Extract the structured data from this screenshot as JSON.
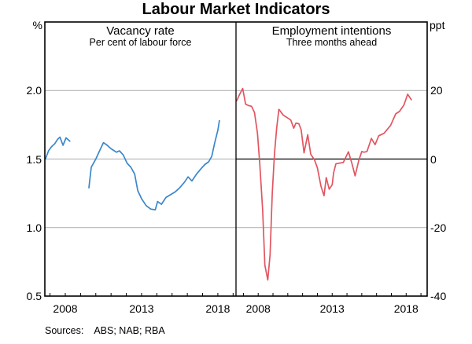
{
  "title": "Labour Market Indicators",
  "footer": {
    "sources_label": "Sources:",
    "sources_text": "ABS; NAB; RBA"
  },
  "colors": {
    "vacancy_line": "#3a87cb",
    "intentions_line": "#e25560",
    "gridline": "#ababab",
    "frame": "#000000"
  },
  "chart_data": [
    {
      "type": "line",
      "panel": "left",
      "title": "Vacancy rate",
      "subtitle": "Per cent of labour force",
      "ylabel": "%",
      "xlim": [
        2006.66,
        2019.19
      ],
      "ylim": [
        0.5,
        2.5
      ],
      "ytick_values": [
        2.0,
        1.5,
        1.0,
        0.5
      ],
      "ytick_labels": [
        "2.0",
        "1.5",
        "1.0",
        "0.5"
      ],
      "xtick_values": [
        2008,
        2013,
        2018
      ],
      "xtick_labels": [
        "2008",
        "2013",
        "2018"
      ],
      "minor_xtick_step": 1,
      "grid": "horizontal",
      "zero_line": false,
      "legend": "none",
      "series": [
        {
          "name": "Vacancy rate (per cent of labour force)",
          "color_key": "vacancy_line",
          "segments": [
            [
              [
                2006.7,
                1.5
              ],
              [
                2006.9,
                1.56
              ],
              [
                2007.1,
                1.59
              ],
              [
                2007.3,
                1.61
              ],
              [
                2007.5,
                1.645
              ],
              [
                2007.65,
                1.66
              ],
              [
                2007.85,
                1.6
              ],
              [
                2008.05,
                1.655
              ],
              [
                2008.3,
                1.63
              ]
            ],
            [
              [
                2009.55,
                1.29
              ],
              [
                2009.7,
                1.44
              ],
              [
                2009.85,
                1.47
              ],
              [
                2010.0,
                1.5
              ],
              [
                2010.25,
                1.56
              ],
              [
                2010.5,
                1.62
              ],
              [
                2010.75,
                1.6
              ],
              [
                2011.0,
                1.575
              ],
              [
                2011.35,
                1.55
              ],
              [
                2011.55,
                1.56
              ],
              [
                2011.8,
                1.53
              ],
              [
                2012.05,
                1.47
              ],
              [
                2012.3,
                1.44
              ],
              [
                2012.55,
                1.39
              ],
              [
                2012.75,
                1.27
              ],
              [
                2013.0,
                1.21
              ],
              [
                2013.3,
                1.16
              ],
              [
                2013.6,
                1.135
              ],
              [
                2013.9,
                1.13
              ],
              [
                2014.05,
                1.19
              ],
              [
                2014.3,
                1.17
              ],
              [
                2014.6,
                1.22
              ],
              [
                2014.9,
                1.24
              ],
              [
                2015.2,
                1.26
              ],
              [
                2015.5,
                1.29
              ],
              [
                2015.8,
                1.33
              ],
              [
                2016.05,
                1.37
              ],
              [
                2016.3,
                1.34
              ],
              [
                2016.6,
                1.39
              ],
              [
                2016.9,
                1.43
              ],
              [
                2017.15,
                1.46
              ],
              [
                2017.4,
                1.48
              ],
              [
                2017.6,
                1.52
              ],
              [
                2017.8,
                1.62
              ],
              [
                2018.0,
                1.71
              ],
              [
                2018.1,
                1.78
              ]
            ]
          ]
        }
      ]
    },
    {
      "type": "line",
      "panel": "right",
      "title": "Employment intentions",
      "subtitle": "Three months ahead",
      "ylabel": "ppt",
      "xlim": [
        2006.5,
        2019.42
      ],
      "ylim": [
        -40,
        40
      ],
      "ytick_values": [
        20,
        0,
        -20,
        -40
      ],
      "ytick_labels": [
        "20",
        "0",
        "-20",
        "-40"
      ],
      "xtick_values": [
        2008,
        2013,
        2018
      ],
      "xtick_labels": [
        "2008",
        "2013",
        "2018"
      ],
      "minor_xtick_step": 1,
      "grid": "horizontal",
      "zero_line": true,
      "legend": "none",
      "series": [
        {
          "name": "Employment intentions (net balance, three months ahead)",
          "color_key": "intentions_line",
          "segments": [
            [
              [
                2006.55,
                17.0
              ],
              [
                2006.7,
                18.5
              ],
              [
                2006.95,
                20.6
              ],
              [
                2007.15,
                16.0
              ],
              [
                2007.35,
                15.6
              ],
              [
                2007.55,
                15.4
              ],
              [
                2007.75,
                13.6
              ],
              [
                2007.95,
                7.5
              ],
              [
                2008.1,
                -1.0
              ],
              [
                2008.3,
                -15.0
              ],
              [
                2008.45,
                -31.0
              ],
              [
                2008.65,
                -35.3
              ],
              [
                2008.8,
                -28.0
              ],
              [
                2008.95,
                -10.0
              ],
              [
                2009.1,
                1.5
              ],
              [
                2009.25,
                9.0
              ],
              [
                2009.4,
                14.5
              ],
              [
                2009.7,
                12.8
              ],
              [
                2009.95,
                12.1
              ],
              [
                2010.2,
                11.4
              ],
              [
                2010.4,
                9.0
              ],
              [
                2010.55,
                10.5
              ],
              [
                2010.75,
                10.3
              ],
              [
                2010.9,
                8.6
              ],
              [
                2011.1,
                1.8
              ],
              [
                2011.35,
                7.1
              ],
              [
                2011.55,
                1.4
              ],
              [
                2011.8,
                -0.2
              ],
              [
                2012.0,
                -2.5
              ],
              [
                2012.25,
                -8.0
              ],
              [
                2012.45,
                -10.7
              ],
              [
                2012.6,
                -5.4
              ],
              [
                2012.8,
                -8.8
              ],
              [
                2013.0,
                -7.5
              ],
              [
                2013.1,
                -4.0
              ],
              [
                2013.25,
                -1.4
              ],
              [
                2013.5,
                -1.2
              ],
              [
                2013.75,
                -1.0
              ],
              [
                2014.1,
                2.1
              ],
              [
                2014.35,
                -1.5
              ],
              [
                2014.55,
                -4.9
              ],
              [
                2014.8,
                -0.4
              ],
              [
                2015.0,
                2.2
              ],
              [
                2015.15,
                2.0
              ],
              [
                2015.35,
                2.2
              ],
              [
                2015.5,
                4.1
              ],
              [
                2015.65,
                6.0
              ],
              [
                2015.9,
                4.2
              ],
              [
                2016.15,
                6.8
              ],
              [
                2016.5,
                7.5
              ],
              [
                2016.95,
                9.8
              ],
              [
                2017.3,
                13.2
              ],
              [
                2017.55,
                13.9
              ],
              [
                2017.85,
                15.8
              ],
              [
                2018.1,
                18.9
              ],
              [
                2018.35,
                17.3
              ]
            ]
          ]
        }
      ]
    }
  ]
}
